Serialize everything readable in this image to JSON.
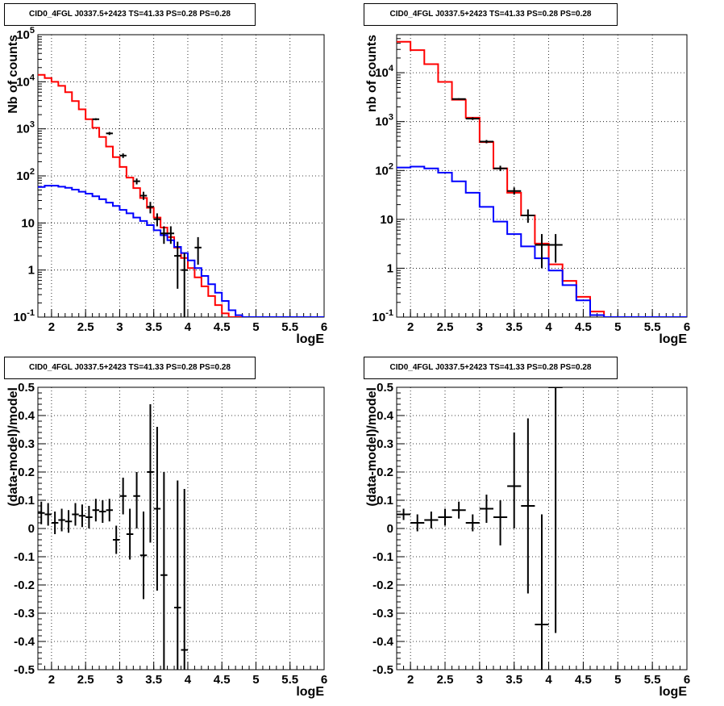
{
  "chart_data": [
    {
      "type": "histogram",
      "title": "CID0_4FGL J0337.5+2423 TS=41.33 PS=0.28 PS=0.28",
      "xlabel": "logE",
      "ylabel": "Nb of counts",
      "xlim": [
        1.8,
        6
      ],
      "ylim": [
        0.1,
        100000
      ],
      "ylog": true,
      "grid": true,
      "xticks": [
        "2",
        "2.5",
        "3",
        "3.5",
        "4",
        "4.5",
        "5",
        "5.5",
        "6"
      ],
      "yticks": [
        {
          "value": 0.1,
          "base": "10",
          "exp": "-1"
        },
        {
          "value": 1,
          "label": "1"
        },
        {
          "value": 10,
          "label": "10"
        },
        {
          "value": 100,
          "base": "10",
          "exp": "2"
        },
        {
          "value": 1000,
          "base": "10",
          "exp": "3"
        },
        {
          "value": 10000,
          "base": "10",
          "exp": "4"
        },
        {
          "value": 100000,
          "base": "10",
          "exp": "5"
        }
      ],
      "bin_width": 0.1,
      "bin_start": 1.8,
      "series": [
        {
          "color": "#ff0000",
          "style": "step",
          "values": [
            14000,
            12000,
            10000,
            8200,
            6000,
            3900,
            2600,
            1600,
            1050,
            670,
            420,
            250,
            155,
            92,
            55,
            34,
            21,
            13,
            8,
            5,
            3,
            1.8,
            1.1,
            0.7,
            0.45,
            0.28,
            0.18,
            0.12,
            0.1,
            0.1,
            0.1,
            0.1,
            0.1,
            0.1,
            0.1,
            0.1,
            0.1,
            0.1,
            0.1,
            0.1,
            0.1,
            0.1
          ]
        },
        {
          "color": "#0000ff",
          "style": "step",
          "values": [
            58,
            62,
            62,
            59,
            56,
            51,
            46,
            42,
            37,
            32,
            27,
            23,
            19,
            16,
            13,
            11,
            9,
            7,
            5.5,
            4.3,
            3.1,
            2.3,
            1.6,
            1.1,
            0.75,
            0.5,
            0.33,
            0.22,
            0.14,
            0.11,
            0.1,
            0.1,
            0.1,
            0.1,
            0.1,
            0.1,
            0.1,
            0.1,
            0.1,
            0.1,
            0.1,
            0.1
          ]
        },
        {
          "color": "#000000",
          "style": "errorbar",
          "points": [
            {
              "x": 2.65,
              "y": 1600,
              "lo": 1520,
              "hi": 1680
            },
            {
              "x": 2.85,
              "y": 800,
              "lo": 740,
              "hi": 860
            },
            {
              "x": 3.05,
              "y": 270,
              "lo": 240,
              "hi": 300
            },
            {
              "x": 3.25,
              "y": 77,
              "lo": 66,
              "hi": 88
            },
            {
              "x": 3.35,
              "y": 38,
              "lo": 31,
              "hi": 46
            },
            {
              "x": 3.45,
              "y": 22,
              "lo": 16,
              "hi": 28
            },
            {
              "x": 3.55,
              "y": 12,
              "lo": 8.5,
              "hi": 16
            },
            {
              "x": 3.65,
              "y": 6,
              "lo": 3.6,
              "hi": 8.5
            },
            {
              "x": 3.75,
              "y": 6,
              "lo": 3.6,
              "hi": 8.5
            },
            {
              "x": 3.85,
              "y": 2,
              "lo": 0.4,
              "hi": 4
            },
            {
              "x": 3.95,
              "y": 1,
              "lo": 0.1,
              "hi": 2.3
            },
            {
              "x": 4.15,
              "y": 3,
              "lo": 1.3,
              "hi": 5
            }
          ]
        }
      ]
    },
    {
      "type": "histogram",
      "title": "CID0_4FGL J0337.5+2423 TS=41.33 PS=0.28 PS=0.28",
      "xlabel": "logE",
      "ylabel": "nb of counts",
      "xlim": [
        1.8,
        6
      ],
      "ylim": [
        0.1,
        60000
      ],
      "ylog": true,
      "grid": true,
      "xticks": [
        "2",
        "2.5",
        "3",
        "3.5",
        "4",
        "4.5",
        "5",
        "5.5",
        "6"
      ],
      "yticks": [
        {
          "value": 0.1,
          "base": "10",
          "exp": "-1"
        },
        {
          "value": 1,
          "label": "1"
        },
        {
          "value": 10,
          "label": "10"
        },
        {
          "value": 100,
          "base": "10",
          "exp": "2"
        },
        {
          "value": 1000,
          "base": "10",
          "exp": "3"
        },
        {
          "value": 10000,
          "base": "10",
          "exp": "4"
        }
      ],
      "bin_width": 0.2,
      "bin_start": 1.8,
      "series": [
        {
          "color": "#ff0000",
          "style": "step",
          "values": [
            43000,
            29000,
            15000,
            6500,
            2800,
            1200,
            380,
            110,
            35,
            12,
            3.2,
            1.2,
            0.55,
            0.26,
            0.13,
            0.1,
            0.1,
            0.1,
            0.1,
            0.1,
            0.1
          ]
        },
        {
          "color": "#0000ff",
          "style": "step",
          "values": [
            115,
            120,
            110,
            90,
            60,
            35,
            18,
            9,
            5,
            2.8,
            1.6,
            0.9,
            0.45,
            0.22,
            0.11,
            0.1,
            0.1,
            0.1,
            0.1,
            0.1,
            0.1
          ]
        },
        {
          "color": "#000000",
          "style": "errorbar",
          "points": [
            {
              "x": 2.7,
              "y": 2900,
              "lo": 2800,
              "hi": 3000
            },
            {
              "x": 2.9,
              "y": 1150,
              "lo": 1080,
              "hi": 1220
            },
            {
              "x": 3.1,
              "y": 390,
              "lo": 360,
              "hi": 420
            },
            {
              "x": 3.3,
              "y": 110,
              "lo": 97,
              "hi": 125
            },
            {
              "x": 3.5,
              "y": 38,
              "lo": 32,
              "hi": 45
            },
            {
              "x": 3.7,
              "y": 12,
              "lo": 8.5,
              "hi": 16
            },
            {
              "x": 3.9,
              "y": 3,
              "lo": 1,
              "hi": 5
            },
            {
              "x": 4.1,
              "y": 3,
              "lo": 1.3,
              "hi": 5
            }
          ]
        }
      ]
    },
    {
      "type": "scatter",
      "title": "CID0_4FGL J0337.5+2423 TS=41.33 PS=0.28 PS=0.28",
      "xlabel": "logE",
      "ylabel": "(data-model)/model",
      "xlim": [
        1.8,
        6
      ],
      "ylim": [
        -0.5,
        0.5
      ],
      "ylog": false,
      "grid": true,
      "xticks": [
        "2",
        "2.5",
        "3",
        "3.5",
        "4",
        "4.5",
        "5",
        "5.5",
        "6"
      ],
      "yticks": [
        "-0.5",
        "-0.4",
        "-0.3",
        "-0.2",
        "-0.1",
        "0",
        "0.1",
        "0.2",
        "0.3",
        "0.4",
        "0.5"
      ],
      "half_width": 0.05,
      "series": [
        {
          "color": "#000000",
          "style": "errorbar",
          "points": [
            {
              "x": 1.85,
              "y": 0.055,
              "lo": 0.015,
              "hi": 0.095
            },
            {
              "x": 1.95,
              "y": 0.05,
              "lo": 0.01,
              "hi": 0.09
            },
            {
              "x": 2.05,
              "y": 0.02,
              "lo": -0.02,
              "hi": 0.06
            },
            {
              "x": 2.15,
              "y": 0.03,
              "lo": -0.01,
              "hi": 0.07
            },
            {
              "x": 2.25,
              "y": 0.025,
              "lo": -0.015,
              "hi": 0.065
            },
            {
              "x": 2.35,
              "y": 0.05,
              "lo": 0.01,
              "hi": 0.09
            },
            {
              "x": 2.45,
              "y": 0.045,
              "lo": 0.005,
              "hi": 0.085
            },
            {
              "x": 2.55,
              "y": 0.04,
              "lo": 0.0,
              "hi": 0.08
            },
            {
              "x": 2.65,
              "y": 0.065,
              "lo": 0.025,
              "hi": 0.105
            },
            {
              "x": 2.75,
              "y": 0.06,
              "lo": 0.02,
              "hi": 0.1
            },
            {
              "x": 2.85,
              "y": 0.065,
              "lo": 0.025,
              "hi": 0.105
            },
            {
              "x": 2.95,
              "y": -0.04,
              "lo": -0.09,
              "hi": 0.01
            },
            {
              "x": 3.05,
              "y": 0.115,
              "lo": 0.05,
              "hi": 0.18
            },
            {
              "x": 3.15,
              "y": -0.02,
              "lo": -0.11,
              "hi": 0.07
            },
            {
              "x": 3.25,
              "y": 0.115,
              "lo": 0.0,
              "hi": 0.2
            },
            {
              "x": 3.35,
              "y": -0.095,
              "lo": -0.25,
              "hi": 0.06
            },
            {
              "x": 3.45,
              "y": 0.2,
              "lo": -0.05,
              "hi": 0.44
            },
            {
              "x": 3.55,
              "y": 0.07,
              "lo": -0.22,
              "hi": 0.36
            },
            {
              "x": 3.65,
              "y": -0.165,
              "lo": -0.5,
              "hi": 0.2
            },
            {
              "x": 3.85,
              "y": -0.28,
              "lo": -0.5,
              "hi": 0.17
            },
            {
              "x": 3.95,
              "y": -0.43,
              "lo": -0.5,
              "hi": 0.14
            }
          ]
        }
      ]
    },
    {
      "type": "scatter",
      "title": "CID0_4FGL J0337.5+2423 TS=41.33 PS=0.28 PS=0.28",
      "xlabel": "logE",
      "ylabel": "(data-model)/model",
      "xlim": [
        1.8,
        6
      ],
      "ylim": [
        -0.5,
        0.5
      ],
      "ylog": false,
      "grid": true,
      "xticks": [
        "2",
        "2.5",
        "3",
        "3.5",
        "4",
        "4.5",
        "5",
        "5.5",
        "6"
      ],
      "yticks": [
        "-0.5",
        "-0.4",
        "-0.3",
        "-0.2",
        "-0.1",
        "0",
        "0.1",
        "0.2",
        "0.3",
        "0.4",
        "0.5"
      ],
      "half_width": 0.1,
      "series": [
        {
          "color": "#000000",
          "style": "errorbar",
          "points": [
            {
              "x": 1.9,
              "y": 0.05,
              "lo": 0.03,
              "hi": 0.07
            },
            {
              "x": 2.1,
              "y": 0.02,
              "lo": -0.01,
              "hi": 0.05
            },
            {
              "x": 2.3,
              "y": 0.03,
              "lo": 0.0,
              "hi": 0.06
            },
            {
              "x": 2.5,
              "y": 0.04,
              "lo": 0.01,
              "hi": 0.07
            },
            {
              "x": 2.7,
              "y": 0.065,
              "lo": 0.035,
              "hi": 0.095
            },
            {
              "x": 2.9,
              "y": 0.02,
              "lo": -0.01,
              "hi": 0.05
            },
            {
              "x": 3.1,
              "y": 0.07,
              "lo": 0.02,
              "hi": 0.12
            },
            {
              "x": 3.3,
              "y": 0.04,
              "lo": -0.06,
              "hi": 0.1
            },
            {
              "x": 3.5,
              "y": 0.15,
              "lo": 0.0,
              "hi": 0.34
            },
            {
              "x": 3.7,
              "y": 0.08,
              "lo": -0.23,
              "hi": 0.39
            },
            {
              "x": 3.9,
              "y": -0.34,
              "lo": -0.5,
              "hi": 0.05
            },
            {
              "x": 4.1,
              "y": 0.5,
              "lo": -0.37,
              "hi": 0.5
            }
          ]
        }
      ]
    }
  ]
}
